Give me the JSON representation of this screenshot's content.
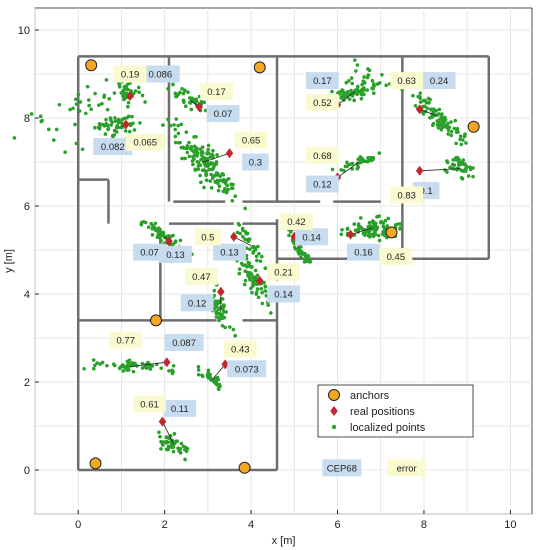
{
  "chart_data": {
    "type": "scatter",
    "title": "",
    "xlabel": "x [m]",
    "ylabel": "y [m]",
    "xlim": [
      -1,
      10.5
    ],
    "ylim": [
      -1,
      10.5
    ],
    "xticks": [
      0,
      2,
      4,
      6,
      8,
      10
    ],
    "yticks": [
      0,
      2,
      4,
      6,
      8,
      10
    ],
    "grid": true,
    "legend_position": "bottom-right",
    "colors": {
      "walls": "#6e6e6e",
      "anchor_fill": "#f5a623",
      "real": "#c0282e",
      "points": "#2aa02a",
      "cep_box": "#c8dcf0",
      "error_box": "#fafad0",
      "grid": "#e1e1e1"
    },
    "walls": [
      [
        [
          0,
          9.4
        ],
        [
          9.5,
          9.4
        ]
      ],
      [
        [
          0,
          9.4
        ],
        [
          0,
          6.6
        ]
      ],
      [
        [
          0,
          6.6
        ],
        [
          0.7,
          6.6
        ]
      ],
      [
        [
          0.7,
          6.6
        ],
        [
          0.7,
          5.6
        ]
      ],
      [
        [
          0,
          6.6
        ],
        [
          0,
          3.4
        ]
      ],
      [
        [
          0,
          3.4
        ],
        [
          3.2,
          3.4
        ]
      ],
      [
        [
          1.9,
          5.5
        ],
        [
          1.9,
          3.4
        ]
      ],
      [
        [
          2.1,
          5.6
        ],
        [
          3.6,
          5.6
        ]
      ],
      [
        [
          3.8,
          5.6
        ],
        [
          4.6,
          5.6
        ]
      ],
      [
        [
          2.2,
          6.1
        ],
        [
          3.4,
          6.1
        ]
      ],
      [
        [
          3.8,
          6.1
        ],
        [
          5.6,
          6.1
        ]
      ],
      [
        [
          5.9,
          6.1
        ],
        [
          7.0,
          6.1
        ]
      ],
      [
        [
          2.1,
          9.4
        ],
        [
          2.1,
          6.1
        ]
      ],
      [
        [
          4.6,
          9.4
        ],
        [
          4.6,
          6.1
        ]
      ],
      [
        [
          7.5,
          9.4
        ],
        [
          7.5,
          4.8
        ]
      ],
      [
        [
          9.5,
          9.4
        ],
        [
          9.5,
          4.8
        ]
      ],
      [
        [
          7.5,
          4.8
        ],
        [
          9.5,
          4.8
        ]
      ],
      [
        [
          4.6,
          4.8
        ],
        [
          7.5,
          4.8
        ]
      ],
      [
        [
          4.6,
          5.7
        ],
        [
          4.6,
          4.3
        ]
      ],
      [
        [
          4.6,
          3.9
        ],
        [
          4.6,
          0
        ]
      ],
      [
        [
          3.8,
          3.4
        ],
        [
          4.6,
          3.4
        ]
      ],
      [
        [
          0,
          3.4
        ],
        [
          0,
          0
        ]
      ],
      [
        [
          0,
          0
        ],
        [
          4.6,
          0
        ]
      ]
    ],
    "series": [
      {
        "name": "anchors",
        "marker": "circle",
        "points": [
          [
            0.3,
            9.2
          ],
          [
            4.2,
            9.15
          ],
          [
            9.15,
            7.8
          ],
          [
            7.25,
            5.4
          ],
          [
            1.8,
            3.4
          ],
          [
            0.4,
            0.15
          ],
          [
            3.85,
            0.05
          ]
        ]
      },
      {
        "name": "real positions",
        "marker": "diamond",
        "points": [
          [
            1.2,
            8.5
          ],
          [
            1.1,
            7.85
          ],
          [
            2.8,
            8.25
          ],
          [
            3.5,
            7.2
          ],
          [
            6.0,
            8.3
          ],
          [
            6.0,
            6.65
          ],
          [
            7.9,
            8.2
          ],
          [
            7.9,
            6.8
          ],
          [
            2.1,
            5.2
          ],
          [
            3.6,
            5.3
          ],
          [
            5.0,
            5.3
          ],
          [
            6.3,
            5.35
          ],
          [
            3.3,
            4.05
          ],
          [
            4.2,
            4.3
          ],
          [
            2.05,
            2.45
          ],
          [
            3.4,
            2.4
          ],
          [
            1.95,
            1.1
          ]
        ]
      },
      {
        "name": "localized points",
        "marker": "dot",
        "clusters": [
          {
            "center": [
              1.15,
              8.55
            ],
            "spread": [
              0.09,
              0.16
            ],
            "tilt": 1.2,
            "n": 35
          },
          {
            "center": [
              1.0,
              7.8
            ],
            "spread": [
              0.2,
              0.12
            ],
            "tilt": 0.2,
            "n": 45
          },
          {
            "center": [
              0.5,
              8.3
            ],
            "spread": [
              0.35,
              0.25
            ],
            "tilt": 0.3,
            "n": 30
          },
          {
            "center": [
              2.6,
              8.4
            ],
            "spread": [
              0.3,
              0.08
            ],
            "tilt": -0.4,
            "n": 40
          },
          {
            "center": [
              2.9,
              7.0
            ],
            "spread": [
              0.55,
              0.16
            ],
            "tilt": -0.9,
            "n": 150
          },
          {
            "center": [
              6.4,
              8.6
            ],
            "spread": [
              0.35,
              0.09
            ],
            "tilt": 0.25,
            "n": 70
          },
          {
            "center": [
              6.6,
              9.0
            ],
            "spread": [
              0.2,
              0.2
            ],
            "tilt": 0.0,
            "n": 15
          },
          {
            "center": [
              6.5,
              7.0
            ],
            "spread": [
              0.25,
              0.07
            ],
            "tilt": 0.3,
            "n": 35
          },
          {
            "center": [
              8.3,
              8.05
            ],
            "spread": [
              0.45,
              0.11
            ],
            "tilt": -0.75,
            "n": 90
          },
          {
            "center": [
              8.85,
              6.85
            ],
            "spread": [
              0.2,
              0.12
            ],
            "tilt": -0.5,
            "n": 45
          },
          {
            "center": [
              2.0,
              5.3
            ],
            "spread": [
              0.35,
              0.08
            ],
            "tilt": -0.6,
            "n": 55
          },
          {
            "center": [
              4.0,
              5.1
            ],
            "spread": [
              0.25,
              0.07
            ],
            "tilt": -0.9,
            "n": 30
          },
          {
            "center": [
              5.1,
              5.05
            ],
            "spread": [
              0.3,
              0.07
            ],
            "tilt": -1.0,
            "n": 45
          },
          {
            "center": [
              6.8,
              5.5
            ],
            "spread": [
              0.35,
              0.14
            ],
            "tilt": 0.1,
            "n": 90
          },
          {
            "center": [
              4.1,
              4.3
            ],
            "spread": [
              0.4,
              0.1
            ],
            "tilt": -1.0,
            "n": 70
          },
          {
            "center": [
              3.3,
              3.6
            ],
            "spread": [
              0.3,
              0.1
            ],
            "tilt": -1.2,
            "n": 45
          },
          {
            "center": [
              1.2,
              2.35
            ],
            "spread": [
              0.5,
              0.07
            ],
            "tilt": -0.05,
            "n": 55
          },
          {
            "center": [
              3.1,
              2.05
            ],
            "spread": [
              0.2,
              0.06
            ],
            "tilt": -0.6,
            "n": 30
          },
          {
            "center": [
              2.2,
              0.6
            ],
            "spread": [
              0.2,
              0.12
            ],
            "tilt": -0.7,
            "n": 45
          },
          {
            "center": [
              -0.3,
              7.8
            ],
            "spread": [
              0.6,
              0.5
            ],
            "tilt": 0.0,
            "n": 14
          }
        ]
      }
    ],
    "cep68_labels": [
      {
        "text": "0.086",
        "x": 1.9,
        "y": 9.0
      },
      {
        "text": "0.082",
        "x": 0.8,
        "y": 7.35
      },
      {
        "text": "0.07",
        "x": 3.35,
        "y": 8.1
      },
      {
        "text": "0.3",
        "x": 4.1,
        "y": 7.0
      },
      {
        "text": "0.17",
        "x": 5.65,
        "y": 8.85
      },
      {
        "text": "0.12",
        "x": 5.65,
        "y": 6.5
      },
      {
        "text": "0.24",
        "x": 8.35,
        "y": 8.85
      },
      {
        "text": "0.1",
        "x": 8.05,
        "y": 6.35
      },
      {
        "text": "0.07",
        "x": 1.65,
        "y": 4.95
      },
      {
        "text": "0.13",
        "x": 2.25,
        "y": 4.9
      },
      {
        "text": "0.13",
        "x": 3.5,
        "y": 4.95
      },
      {
        "text": "0.14",
        "x": 5.4,
        "y": 5.3
      },
      {
        "text": "0.12",
        "x": 2.75,
        "y": 3.8
      },
      {
        "text": "0.14",
        "x": 4.75,
        "y": 4.0
      },
      {
        "text": "0.16",
        "x": 6.6,
        "y": 4.95
      },
      {
        "text": "0.087",
        "x": 2.45,
        "y": 2.9
      },
      {
        "text": "0.073",
        "x": 3.9,
        "y": 2.3
      },
      {
        "text": "0.11",
        "x": 2.35,
        "y": 1.4
      },
      {
        "text": "CEP68",
        "x": 6.1,
        "y": 0.05
      }
    ],
    "error_labels": [
      {
        "text": "0.19",
        "x": 1.2,
        "y": 9.0
      },
      {
        "text": "0.065",
        "x": 1.55,
        "y": 7.45
      },
      {
        "text": "0.17",
        "x": 3.2,
        "y": 8.6
      },
      {
        "text": "0.65",
        "x": 4.0,
        "y": 7.5
      },
      {
        "text": "0.52",
        "x": 5.65,
        "y": 8.35
      },
      {
        "text": "0.68",
        "x": 5.65,
        "y": 7.15
      },
      {
        "text": "0.63",
        "x": 7.6,
        "y": 8.85
      },
      {
        "text": "0.83",
        "x": 7.6,
        "y": 6.25
      },
      {
        "text": "0.5",
        "x": 3.0,
        "y": 5.3
      },
      {
        "text": "0.42",
        "x": 5.05,
        "y": 5.65
      },
      {
        "text": "0.47",
        "x": 2.85,
        "y": 4.4
      },
      {
        "text": "0.21",
        "x": 4.75,
        "y": 4.5
      },
      {
        "text": "0.45",
        "x": 7.35,
        "y": 4.85
      },
      {
        "text": "0.77",
        "x": 1.1,
        "y": 2.95
      },
      {
        "text": "0.43",
        "x": 3.75,
        "y": 2.75
      },
      {
        "text": "0.61",
        "x": 1.65,
        "y": 1.5
      },
      {
        "text": "error",
        "x": 7.6,
        "y": 0.05
      }
    ],
    "legend": [
      "anchors",
      "real positions",
      "localized points"
    ]
  }
}
